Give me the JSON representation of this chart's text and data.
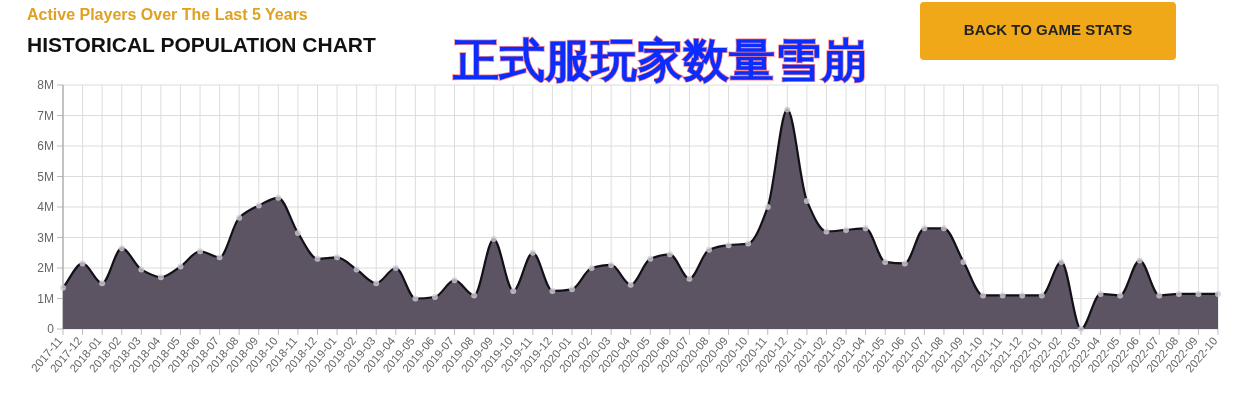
{
  "chart_data": {
    "type": "area",
    "subtitle": "Active Players Over The Last 5 Years",
    "title": "HISTORICAL POPULATION CHART",
    "annotations": [
      "正式服玩家数量雪崩",
      "BACK TO GAME STATS"
    ],
    "categories": [
      "2017-11",
      "2017-12",
      "2018-01",
      "2018-02",
      "2018-03",
      "2018-04",
      "2018-05",
      "2018-06",
      "2018-07",
      "2018-08",
      "2018-09",
      "2018-10",
      "2018-11",
      "2018-12",
      "2019-01",
      "2019-02",
      "2019-03",
      "2019-04",
      "2019-05",
      "2019-06",
      "2019-07",
      "2019-08",
      "2019-09",
      "2019-10",
      "2019-11",
      "2019-12",
      "2020-01",
      "2020-02",
      "2020-03",
      "2020-04",
      "2020-05",
      "2020-06",
      "2020-07",
      "2020-08",
      "2020-09",
      "2020-10",
      "2020-11",
      "2020-12",
      "2021-01",
      "2021-02",
      "2021-03",
      "2021-04",
      "2021-05",
      "2021-06",
      "2021-07",
      "2021-08",
      "2021-09",
      "2021-10",
      "2021-11",
      "2021-12",
      "2022-01",
      "2022-02",
      "2022-03",
      "2022-04",
      "2022-05",
      "2022-06",
      "2022-07",
      "2022-08",
      "2022-09",
      "2022-10"
    ],
    "series": [
      {
        "color": "#5c5462",
        "values": [
          1350000,
          2150000,
          1500000,
          2650000,
          1950000,
          1700000,
          2050000,
          2550000,
          2350000,
          3650000,
          4050000,
          4300000,
          3150000,
          2300000,
          2350000,
          1950000,
          1500000,
          2000000,
          1000000,
          1050000,
          1600000,
          1100000,
          2950000,
          1250000,
          2500000,
          1250000,
          1300000,
          2000000,
          2100000,
          1450000,
          2300000,
          2450000,
          1650000,
          2600000,
          2750000,
          2800000,
          4000000,
          7200000,
          4200000,
          3200000,
          3250000,
          3300000,
          2200000,
          2150000,
          3300000,
          3300000,
          2200000,
          1100000,
          1100000,
          1100000,
          1100000,
          2200000,
          0,
          1150000,
          1100000,
          2250000,
          1100000,
          1150000,
          1150000,
          1150000
        ]
      }
    ],
    "ylim": [
      0,
      8000000
    ],
    "yticks": [
      {
        "value": 0,
        "label": "0"
      },
      {
        "value": 1000000,
        "label": "1M"
      },
      {
        "value": 2000000,
        "label": "2M"
      },
      {
        "value": 3000000,
        "label": "3M"
      },
      {
        "value": 4000000,
        "label": "4M"
      },
      {
        "value": 5000000,
        "label": "5M"
      },
      {
        "value": 6000000,
        "label": "6M"
      },
      {
        "value": 7000000,
        "label": "7M"
      },
      {
        "value": 8000000,
        "label": "8M"
      }
    ],
    "grid": true,
    "marker": "circle"
  }
}
